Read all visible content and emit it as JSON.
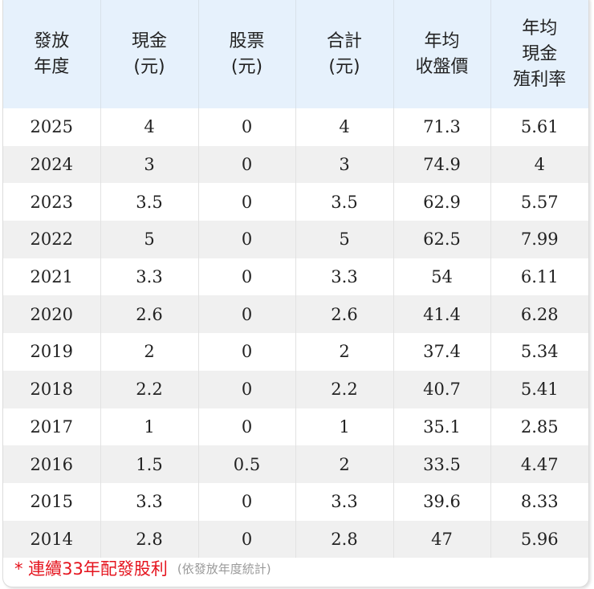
{
  "table": {
    "headers": [
      {
        "lines": [
          "發放",
          "年度"
        ]
      },
      {
        "lines": [
          "現金",
          "(元)"
        ]
      },
      {
        "lines": [
          "股票",
          "(元)"
        ]
      },
      {
        "lines": [
          "合計",
          "(元)"
        ]
      },
      {
        "lines": [
          "年均",
          "收盤價"
        ]
      },
      {
        "lines": [
          "年均",
          "現金",
          "殖利率"
        ]
      }
    ],
    "rows": [
      [
        "2025",
        "4",
        "0",
        "4",
        "71.3",
        "5.61"
      ],
      [
        "2024",
        "3",
        "0",
        "3",
        "74.9",
        "4"
      ],
      [
        "2023",
        "3.5",
        "0",
        "3.5",
        "62.9",
        "5.57"
      ],
      [
        "2022",
        "5",
        "0",
        "5",
        "62.5",
        "7.99"
      ],
      [
        "2021",
        "3.3",
        "0",
        "3.3",
        "54",
        "6.11"
      ],
      [
        "2020",
        "2.6",
        "0",
        "2.6",
        "41.4",
        "6.28"
      ],
      [
        "2019",
        "2",
        "0",
        "2",
        "37.4",
        "5.34"
      ],
      [
        "2018",
        "2.2",
        "0",
        "2.2",
        "40.7",
        "5.41"
      ],
      [
        "2017",
        "1",
        "0",
        "1",
        "35.1",
        "2.85"
      ],
      [
        "2016",
        "1.5",
        "0.5",
        "2",
        "33.5",
        "4.47"
      ],
      [
        "2015",
        "3.3",
        "0",
        "3.3",
        "39.6",
        "8.33"
      ],
      [
        "2014",
        "2.8",
        "0",
        "2.8",
        "47",
        "5.96"
      ]
    ]
  },
  "footer": {
    "note": "* 連續33年配發股利",
    "subnote": "(依發放年度統計)"
  },
  "colors": {
    "header_bg": "#e6f1fc",
    "stripe_bg": "#f0f0f0",
    "note_red": "#e5141e",
    "subnote_gray": "#9a9a9a"
  }
}
